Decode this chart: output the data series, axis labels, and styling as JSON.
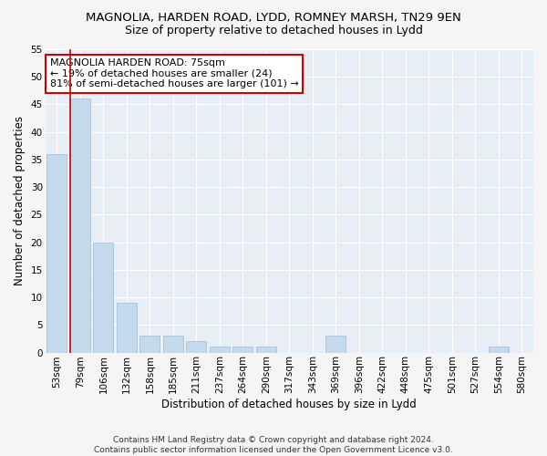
{
  "title1": "MAGNOLIA, HARDEN ROAD, LYDD, ROMNEY MARSH, TN29 9EN",
  "title2": "Size of property relative to detached houses in Lydd",
  "xlabel": "Distribution of detached houses by size in Lydd",
  "ylabel": "Number of detached properties",
  "footer": "Contains HM Land Registry data © Crown copyright and database right 2024.\nContains public sector information licensed under the Open Government Licence v3.0.",
  "annotation_title": "MAGNOLIA HARDEN ROAD: 75sqm",
  "annotation_line1": "← 19% of detached houses are smaller (24)",
  "annotation_line2": "81% of semi-detached houses are larger (101) →",
  "bar_labels": [
    "53sqm",
    "79sqm",
    "106sqm",
    "132sqm",
    "158sqm",
    "185sqm",
    "211sqm",
    "237sqm",
    "264sqm",
    "290sqm",
    "317sqm",
    "343sqm",
    "369sqm",
    "396sqm",
    "422sqm",
    "448sqm",
    "475sqm",
    "501sqm",
    "527sqm",
    "554sqm",
    "580sqm"
  ],
  "bar_values": [
    36,
    46,
    20,
    9,
    3,
    3,
    2,
    1,
    1,
    1,
    0,
    0,
    3,
    0,
    0,
    0,
    0,
    0,
    0,
    1,
    0
  ],
  "bar_color": "#c5d9ed",
  "bar_edge_color": "#a0bdd4",
  "red_line_x": 0.575,
  "ylim": [
    0,
    55
  ],
  "bg_color": "#e8eef5",
  "grid_color": "#ffffff",
  "fig_bg_color": "#f5f5f5",
  "annotation_box_color": "#ffffff",
  "annotation_box_edge": "#cc0000",
  "title_fontsize": 9.5,
  "subtitle_fontsize": 9,
  "axis_label_fontsize": 8.5,
  "tick_fontsize": 7.5,
  "annotation_fontsize": 8
}
